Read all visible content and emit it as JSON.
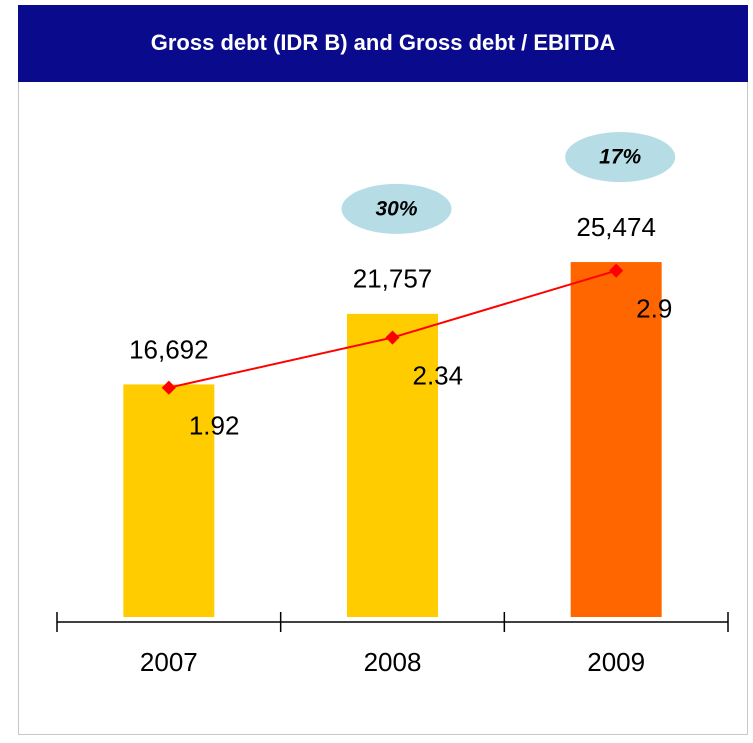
{
  "chart_data": {
    "type": "bar",
    "title": "Gross debt (IDR B) and Gross debt / EBITDA",
    "categories": [
      "2007",
      "2008",
      "2009"
    ],
    "series": [
      {
        "values": [
          16692,
          21757,
          25474
        ],
        "value_labels": [
          "16,692",
          "21,757",
          "25,474"
        ],
        "colors": [
          "#ffcc00",
          "#ffcc00",
          "#ff6600"
        ]
      },
      {
        "type": "line",
        "axis": "y2",
        "color": "#ff0000",
        "values": [
          1.92,
          2.34,
          2.9
        ]
      }
    ],
    "growth_labels": [
      null,
      "30%",
      "17%"
    ],
    "ylim": [
      0,
      30000
    ],
    "y2lim": [
      0,
      3.5
    ]
  }
}
